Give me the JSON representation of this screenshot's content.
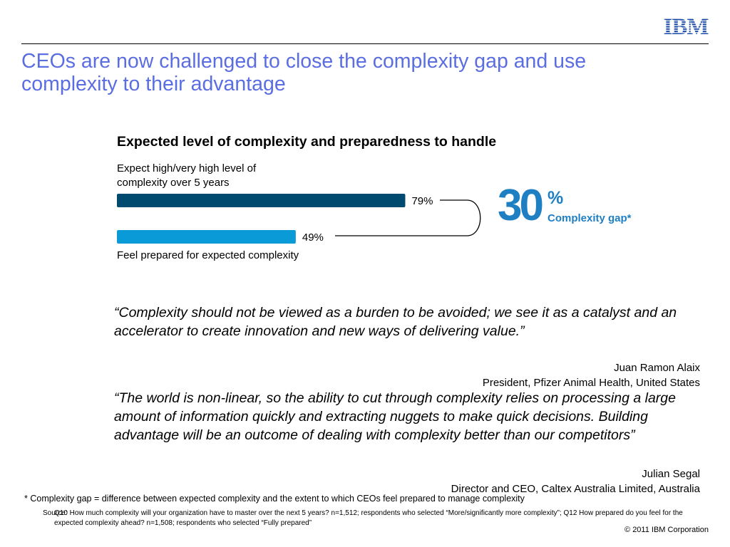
{
  "brand": {
    "logo": "IBM",
    "color": "#1f4ea8"
  },
  "slide": {
    "title": "CEOs are now challenged to close the complexity gap and use complexity to their advantage"
  },
  "chart_data": {
    "type": "bar",
    "orientation": "horizontal",
    "title": "Expected level of complexity and preparedness to handle",
    "categories": [
      "Expect high/very high level of complexity over 5 years",
      "Feel prepared for expected complexity"
    ],
    "values": [
      79,
      49
    ],
    "value_labels": [
      "79%",
      "49%"
    ],
    "colors": [
      "#004a6f",
      "#0b9ad8"
    ],
    "xlim": [
      0,
      100
    ],
    "grid": false,
    "legend": "none"
  },
  "gap": {
    "value": "30",
    "unit": "%",
    "label": "Complexity gap*"
  },
  "quotes": [
    {
      "text": "“Complexity should not be viewed as a burden to be avoided; we see it as a catalyst and an accelerator to create innovation and new ways of delivering value.”",
      "author": "Juan Ramon Alaix",
      "role": "President, Pfizer Animal Health, United States"
    },
    {
      "text": "“The world is non-linear, so the ability to cut through complexity relies on processing a large amount of information quickly and extracting nuggets to make quick decisions. Building advantage will be an outcome of dealing with complexity better than our competitors”",
      "author": "Julian Segal",
      "role": "Director and CEO, Caltex Australia Limited, Australia"
    }
  ],
  "footnote": "* Complexity gap = difference between expected complexity and the extent to which CEOs feel prepared to manage complexity",
  "source": {
    "label": "Source:",
    "text": "Q10  How much complexity will your organization have to master over the next 5 years? n=1,512; respondents who selected “More/significantly more complexity”; Q12  How prepared do you feel for the expected complexity ahead? n=1,508; respondents who selected “Fully prepared”"
  },
  "copyright": "© 2011 IBM Corporation"
}
